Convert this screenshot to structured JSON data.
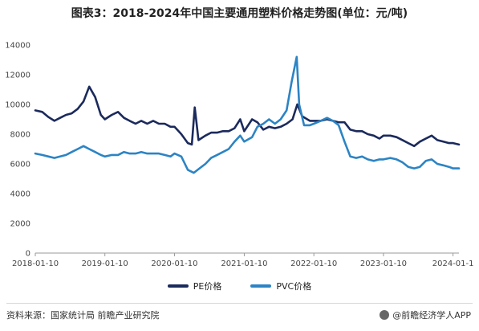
{
  "header": {
    "title": "图表3：2018-2024年中国主要通用塑料价格走势图(单位：元/吨)"
  },
  "footer": {
    "source": "资料来源：国家统计局 前瞻产业研究院",
    "app_credit": "@前瞻经济学人APP"
  },
  "colors": {
    "pe": "#1b2a5c",
    "pvc": "#2c84c4",
    "axis": "#9a9a9a"
  },
  "chart_data": {
    "type": "line",
    "x_tick_labels": [
      "2018-01-10",
      "2019-01-10",
      "2020-01-10",
      "2021-01-10",
      "2022-01-10",
      "2023-01-10",
      "2024-01-1"
    ],
    "ylim": [
      0,
      14000
    ],
    "y_ticks": [
      0,
      2000,
      4000,
      6000,
      8000,
      10000,
      12000,
      14000
    ],
    "series": [
      {
        "name": "PE价格",
        "points": [
          [
            "2018-01-10",
            9600
          ],
          [
            "2018-02-15",
            9500
          ],
          [
            "2018-03-20",
            9150
          ],
          [
            "2018-04-20",
            8900
          ],
          [
            "2018-05-20",
            9100
          ],
          [
            "2018-06-20",
            9300
          ],
          [
            "2018-07-20",
            9400
          ],
          [
            "2018-08-20",
            9700
          ],
          [
            "2018-09-20",
            10200
          ],
          [
            "2018-10-20",
            11200
          ],
          [
            "2018-11-20",
            10500
          ],
          [
            "2018-12-20",
            9300
          ],
          [
            "2019-01-10",
            9000
          ],
          [
            "2019-02-15",
            9300
          ],
          [
            "2019-03-20",
            9500
          ],
          [
            "2019-04-20",
            9100
          ],
          [
            "2019-05-20",
            8900
          ],
          [
            "2019-06-20",
            8700
          ],
          [
            "2019-07-20",
            8900
          ],
          [
            "2019-08-20",
            8700
          ],
          [
            "2019-09-20",
            8900
          ],
          [
            "2019-10-20",
            8700
          ],
          [
            "2019-11-20",
            8700
          ],
          [
            "2019-12-20",
            8500
          ],
          [
            "2020-01-10",
            8500
          ],
          [
            "2020-02-15",
            8000
          ],
          [
            "2020-03-20",
            7400
          ],
          [
            "2020-04-10",
            7300
          ],
          [
            "2020-04-25",
            9800
          ],
          [
            "2020-05-15",
            7600
          ],
          [
            "2020-06-20",
            7900
          ],
          [
            "2020-07-20",
            8100
          ],
          [
            "2020-08-20",
            8100
          ],
          [
            "2020-09-20",
            8200
          ],
          [
            "2020-10-20",
            8200
          ],
          [
            "2020-11-20",
            8400
          ],
          [
            "2020-12-20",
            9000
          ],
          [
            "2021-01-10",
            8200
          ],
          [
            "2021-02-20",
            9000
          ],
          [
            "2021-03-20",
            8800
          ],
          [
            "2021-04-20",
            8300
          ],
          [
            "2021-05-20",
            8500
          ],
          [
            "2021-06-20",
            8400
          ],
          [
            "2021-07-20",
            8500
          ],
          [
            "2021-08-20",
            8700
          ],
          [
            "2021-09-20",
            9000
          ],
          [
            "2021-10-15",
            10000
          ],
          [
            "2021-11-10",
            9200
          ],
          [
            "2021-12-20",
            8900
          ],
          [
            "2022-01-10",
            8900
          ],
          [
            "2022-02-15",
            8900
          ],
          [
            "2022-03-20",
            9000
          ],
          [
            "2022-04-20",
            8900
          ],
          [
            "2022-05-20",
            8800
          ],
          [
            "2022-06-20",
            8800
          ],
          [
            "2022-07-20",
            8300
          ],
          [
            "2022-08-20",
            8200
          ],
          [
            "2022-09-20",
            8200
          ],
          [
            "2022-10-20",
            8000
          ],
          [
            "2022-11-20",
            7900
          ],
          [
            "2022-12-20",
            7700
          ],
          [
            "2023-01-10",
            7900
          ],
          [
            "2023-02-15",
            7900
          ],
          [
            "2023-03-20",
            7800
          ],
          [
            "2023-04-20",
            7600
          ],
          [
            "2023-05-20",
            7400
          ],
          [
            "2023-06-20",
            7200
          ],
          [
            "2023-07-20",
            7500
          ],
          [
            "2023-08-20",
            7700
          ],
          [
            "2023-09-20",
            7900
          ],
          [
            "2023-10-20",
            7600
          ],
          [
            "2023-11-20",
            7500
          ],
          [
            "2023-12-20",
            7400
          ],
          [
            "2024-01-10",
            7400
          ],
          [
            "2024-02-10",
            7300
          ]
        ]
      },
      {
        "name": "PVC价格",
        "points": [
          [
            "2018-01-10",
            6700
          ],
          [
            "2018-02-15",
            6600
          ],
          [
            "2018-03-20",
            6500
          ],
          [
            "2018-04-20",
            6400
          ],
          [
            "2018-05-20",
            6500
          ],
          [
            "2018-06-20",
            6600
          ],
          [
            "2018-07-20",
            6800
          ],
          [
            "2018-08-20",
            7000
          ],
          [
            "2018-09-20",
            7200
          ],
          [
            "2018-10-20",
            7000
          ],
          [
            "2018-11-20",
            6800
          ],
          [
            "2018-12-20",
            6600
          ],
          [
            "2019-01-10",
            6500
          ],
          [
            "2019-02-15",
            6600
          ],
          [
            "2019-03-20",
            6600
          ],
          [
            "2019-04-20",
            6800
          ],
          [
            "2019-05-20",
            6700
          ],
          [
            "2019-06-20",
            6700
          ],
          [
            "2019-07-20",
            6800
          ],
          [
            "2019-08-20",
            6700
          ],
          [
            "2019-09-20",
            6700
          ],
          [
            "2019-10-20",
            6700
          ],
          [
            "2019-11-20",
            6600
          ],
          [
            "2019-12-20",
            6500
          ],
          [
            "2020-01-10",
            6700
          ],
          [
            "2020-02-15",
            6500
          ],
          [
            "2020-03-20",
            5600
          ],
          [
            "2020-04-20",
            5400
          ],
          [
            "2020-05-20",
            5700
          ],
          [
            "2020-06-20",
            6000
          ],
          [
            "2020-07-20",
            6400
          ],
          [
            "2020-08-20",
            6600
          ],
          [
            "2020-09-20",
            6800
          ],
          [
            "2020-10-20",
            7000
          ],
          [
            "2020-11-20",
            7500
          ],
          [
            "2020-12-20",
            7900
          ],
          [
            "2021-01-10",
            7500
          ],
          [
            "2021-02-20",
            7800
          ],
          [
            "2021-03-20",
            8500
          ],
          [
            "2021-04-20",
            8700
          ],
          [
            "2021-05-20",
            9000
          ],
          [
            "2021-06-20",
            8700
          ],
          [
            "2021-07-20",
            9000
          ],
          [
            "2021-08-20",
            9600
          ],
          [
            "2021-09-15",
            11500
          ],
          [
            "2021-10-12",
            13200
          ],
          [
            "2021-10-25",
            10000
          ],
          [
            "2021-11-20",
            8600
          ],
          [
            "2021-12-20",
            8600
          ],
          [
            "2022-01-10",
            8700
          ],
          [
            "2022-02-15",
            8900
          ],
          [
            "2022-03-20",
            9100
          ],
          [
            "2022-04-20",
            8900
          ],
          [
            "2022-05-20",
            8600
          ],
          [
            "2022-06-20",
            7500
          ],
          [
            "2022-07-20",
            6500
          ],
          [
            "2022-08-20",
            6400
          ],
          [
            "2022-09-20",
            6500
          ],
          [
            "2022-10-20",
            6300
          ],
          [
            "2022-11-20",
            6200
          ],
          [
            "2022-12-20",
            6300
          ],
          [
            "2023-01-10",
            6300
          ],
          [
            "2023-02-15",
            6400
          ],
          [
            "2023-03-20",
            6300
          ],
          [
            "2023-04-20",
            6100
          ],
          [
            "2023-05-20",
            5800
          ],
          [
            "2023-06-20",
            5700
          ],
          [
            "2023-07-20",
            5800
          ],
          [
            "2023-08-20",
            6200
          ],
          [
            "2023-09-20",
            6300
          ],
          [
            "2023-10-20",
            6000
          ],
          [
            "2023-11-20",
            5900
          ],
          [
            "2023-12-20",
            5800
          ],
          [
            "2024-01-10",
            5700
          ],
          [
            "2024-02-10",
            5700
          ]
        ]
      }
    ]
  }
}
